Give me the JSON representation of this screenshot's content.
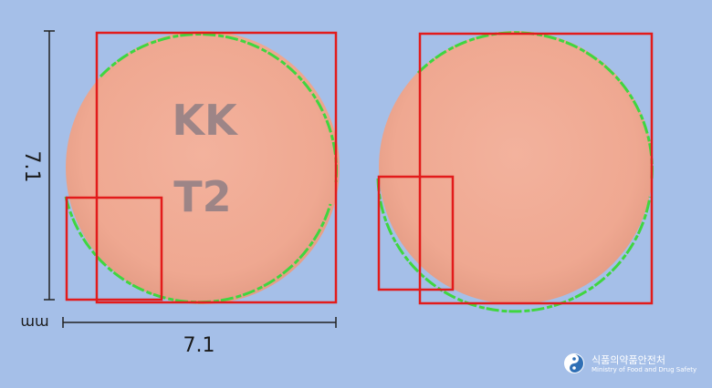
{
  "measurements": {
    "height_label": "7.1",
    "width_label": "7.1",
    "unit_label": "mm"
  },
  "pill": {
    "imprint_line1": "KK",
    "imprint_line2": "T2",
    "color": "#f0aa94"
  },
  "overlay_colors": {
    "box": "#e21b1b",
    "contour": "#3fd63f",
    "dimension_line": "#222222"
  },
  "logo": {
    "korean": "식품의약품안전처",
    "english": "Ministry of Food and Drug Safety",
    "icon": "mfds-emblem-icon"
  }
}
